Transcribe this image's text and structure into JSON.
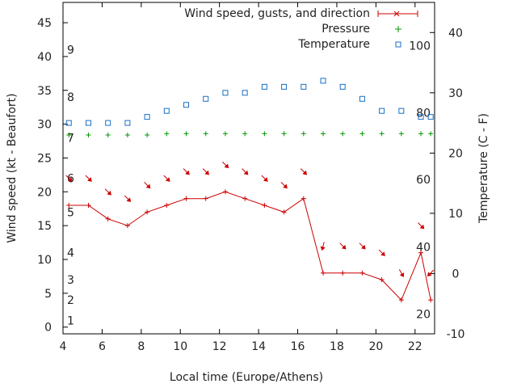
{
  "chart_data": {
    "type": "line",
    "xlabel": "Local time (Europe/Athens)",
    "ylabel": "Wind speed (kt - Beaufort)",
    "y2label": "Temperature (C - F)",
    "xlim": [
      4,
      23
    ],
    "ylim": [
      -1,
      48
    ],
    "y2lim": [
      -10,
      45
    ],
    "x_ticks": [
      4,
      6,
      8,
      10,
      12,
      14,
      16,
      18,
      20,
      22
    ],
    "y_ticks": [
      0,
      5,
      10,
      15,
      20,
      25,
      30,
      35,
      40,
      45
    ],
    "y2_ticks": [
      -10,
      0,
      10,
      20,
      30,
      40
    ],
    "beaufort_labels": [
      {
        "label": "1",
        "kt": 1
      },
      {
        "label": "2",
        "kt": 4
      },
      {
        "label": "3",
        "kt": 7
      },
      {
        "label": "4",
        "kt": 11
      },
      {
        "label": "5",
        "kt": 17
      },
      {
        "label": "6",
        "kt": 22
      },
      {
        "label": "7",
        "kt": 28
      },
      {
        "label": "8",
        "kt": 34
      },
      {
        "label": "9",
        "kt": 41
      }
    ],
    "fahrenheit_labels": [
      {
        "label": "20",
        "c": -6.7
      },
      {
        "label": "40",
        "c": 4.4
      },
      {
        "label": "60",
        "c": 15.6
      },
      {
        "label": "80",
        "c": 26.7
      },
      {
        "label": "100",
        "c": 37.8
      }
    ],
    "grid": false,
    "legend_position": "top-right",
    "legend": {
      "wind": "Wind speed, gusts, and direction",
      "pressure": "Pressure",
      "temperature": "Temperature"
    },
    "colors": {
      "wind": "#cc0000",
      "pressure": "#009900",
      "temperature": "#1a6fc4"
    },
    "series": [
      {
        "name": "Wind speed, gusts, and direction",
        "x": [
          4.3,
          5.3,
          6.3,
          7.3,
          8.3,
          9.3,
          10.3,
          11.3,
          12.3,
          13.3,
          14.3,
          15.3,
          16.3,
          17.3,
          18.3,
          19.3,
          20.3,
          21.3,
          22.3,
          22.8
        ],
        "y": [
          18,
          18,
          16,
          15,
          17,
          18,
          19,
          19,
          20,
          19,
          18,
          17,
          19,
          8,
          8,
          8,
          7,
          4,
          11,
          4
        ]
      },
      {
        "name": "Wind direction arrows",
        "x": [
          4.3,
          5.3,
          6.3,
          7.3,
          8.3,
          9.3,
          10.3,
          11.3,
          12.3,
          13.3,
          14.3,
          15.3,
          16.3,
          17.3,
          18.3,
          19.3,
          20.3,
          21.3,
          22.3,
          22.8
        ],
        "y": [
          22,
          22,
          20,
          19,
          21,
          22,
          23,
          23,
          24,
          23,
          22,
          21,
          23,
          12,
          12,
          12,
          11,
          8,
          15,
          8
        ],
        "direction_deg": [
          315,
          315,
          315,
          315,
          315,
          315,
          315,
          315,
          315,
          315,
          315,
          315,
          315,
          15,
          315,
          315,
          315,
          330,
          315,
          45
        ]
      },
      {
        "name": "Pressure",
        "x": [
          4.3,
          5.3,
          6.3,
          7.3,
          8.3,
          9.3,
          10.3,
          11.3,
          12.3,
          13.3,
          14.3,
          15.3,
          16.3,
          17.3,
          18.3,
          19.3,
          20.3,
          21.3,
          22.3,
          22.8
        ],
        "y": [
          28.4,
          28.4,
          28.4,
          28.4,
          28.4,
          28.6,
          28.6,
          28.6,
          28.6,
          28.6,
          28.6,
          28.6,
          28.6,
          28.6,
          28.6,
          28.6,
          28.6,
          28.6,
          28.6,
          28.6
        ]
      },
      {
        "name": "Temperature",
        "axis": "y2",
        "x": [
          4.3,
          5.3,
          6.3,
          7.3,
          8.3,
          9.3,
          10.3,
          11.3,
          12.3,
          13.3,
          14.3,
          15.3,
          16.3,
          17.3,
          18.3,
          19.3,
          20.3,
          21.3,
          22.3,
          22.8
        ],
        "y": [
          25,
          25,
          25,
          25,
          26,
          27,
          28,
          29,
          30,
          30,
          31,
          31,
          31,
          32,
          31,
          29,
          27,
          27,
          26,
          26
        ]
      }
    ]
  }
}
